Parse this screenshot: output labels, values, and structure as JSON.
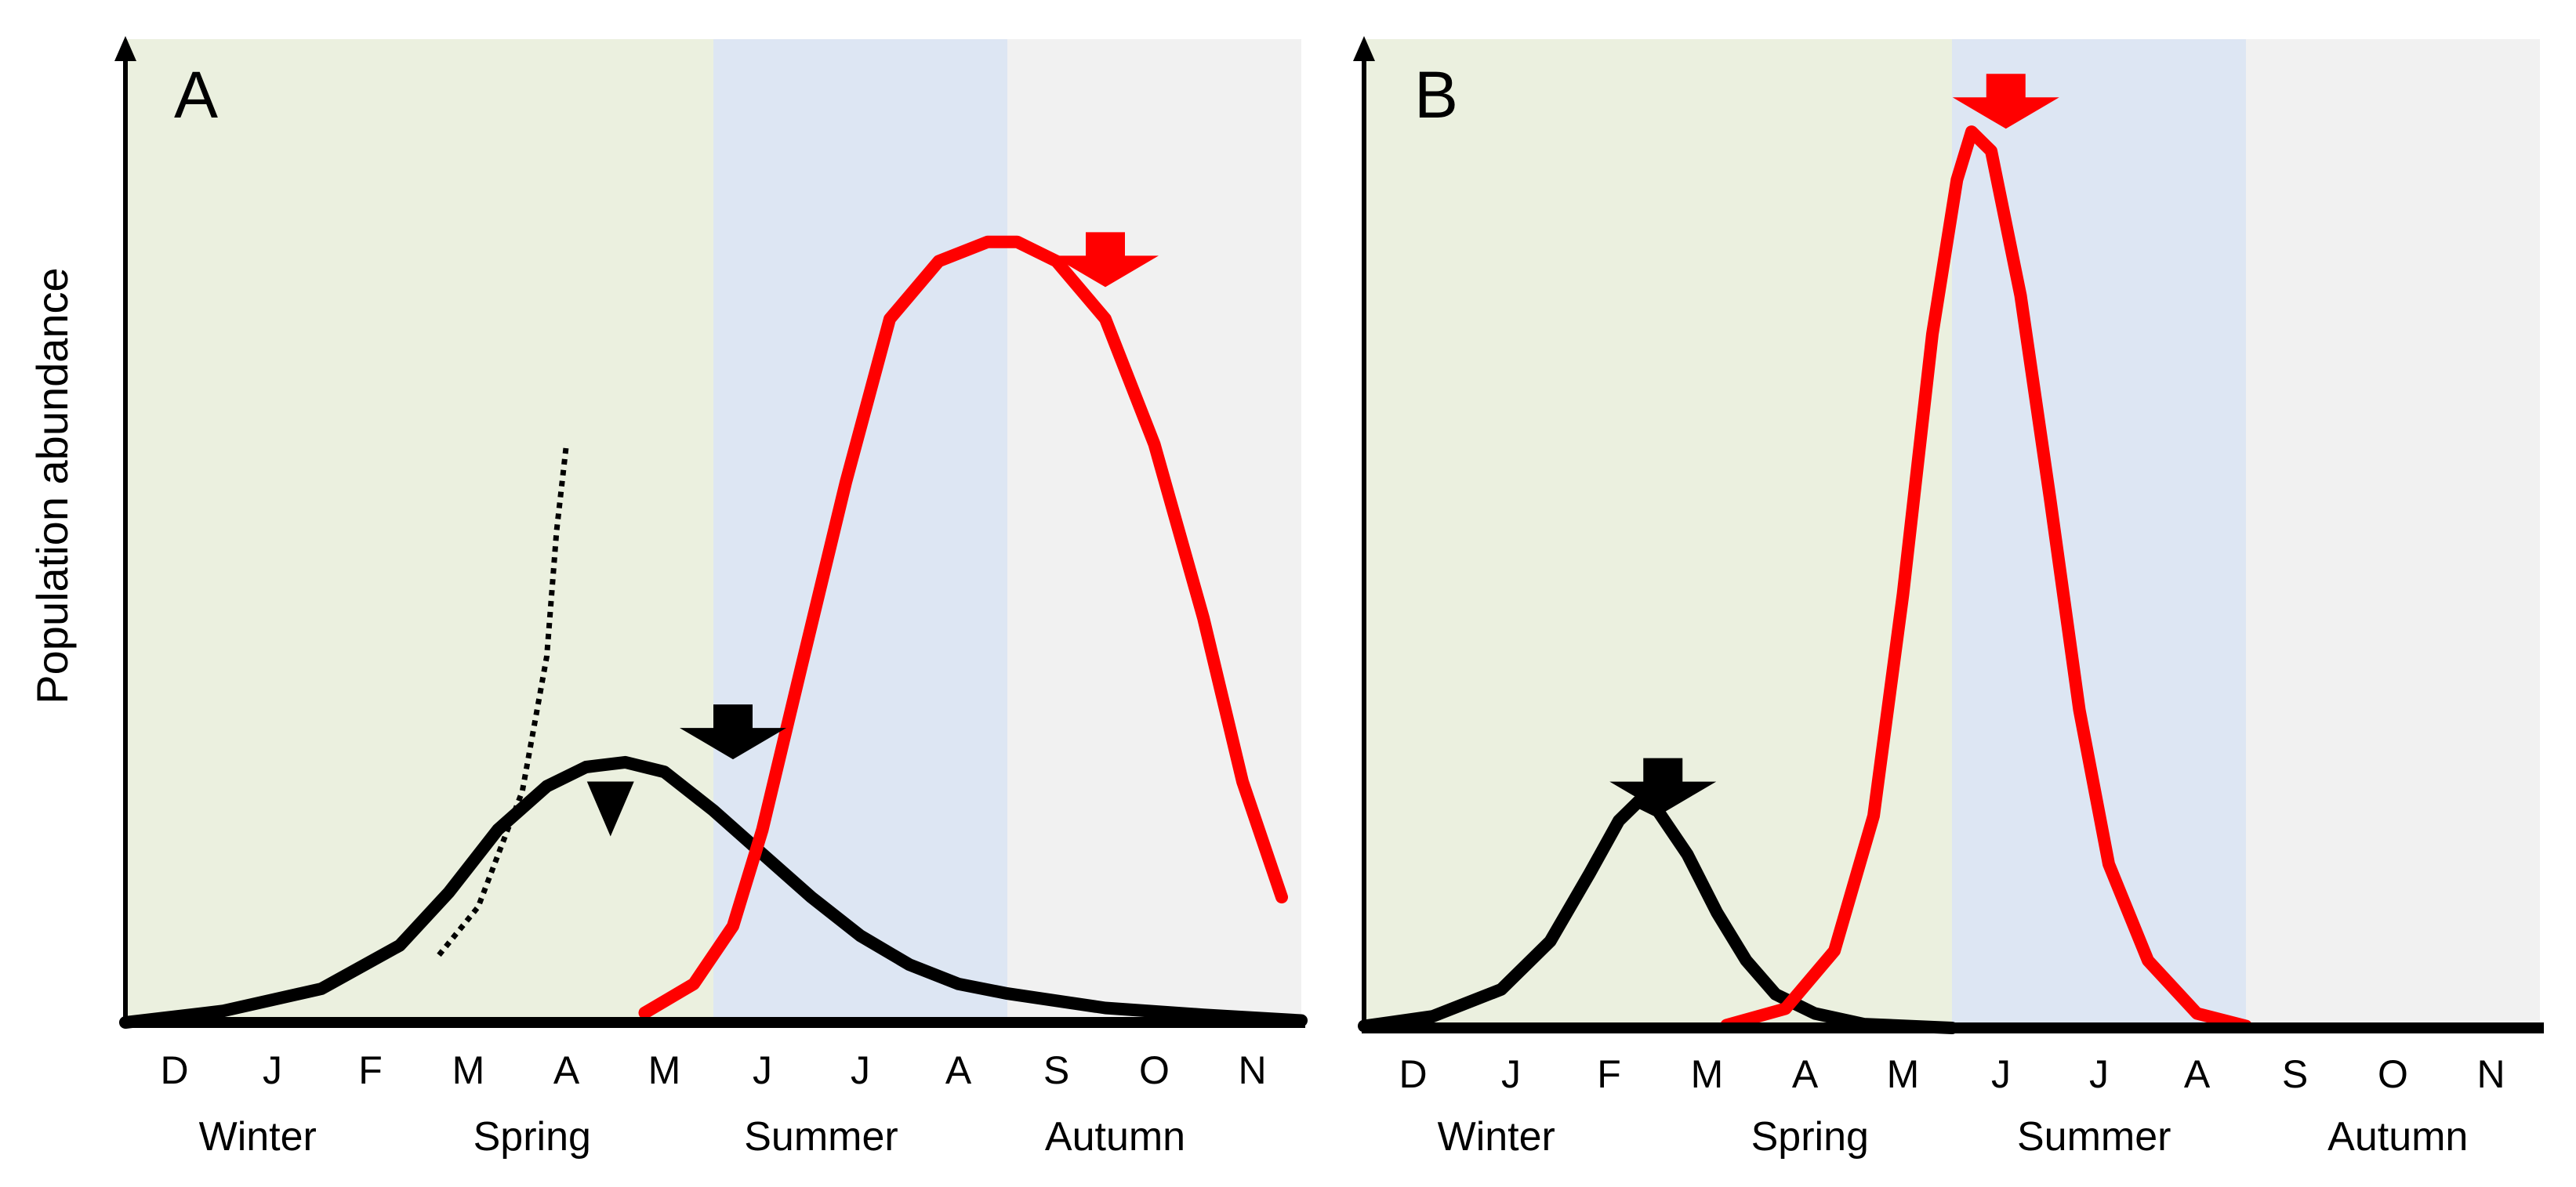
{
  "chart_data": [
    {
      "type": "line",
      "panel_label": "A",
      "ylabel": "Population abundance",
      "x_ticks": [
        "D",
        "J",
        "F",
        "M",
        "A",
        "M",
        "J",
        "J",
        "A",
        "S",
        "O",
        "N"
      ],
      "seasons": [
        {
          "name": "Winter",
          "start_month": 0,
          "end_month": 6,
          "label_month": 1.35,
          "color": "#ebf0df"
        },
        {
          "name": "Spring",
          "start_month": 0,
          "end_month": 6,
          "label_month": 4.15,
          "color": "#ebf0df"
        },
        {
          "name": "Summer",
          "start_month": 6,
          "end_month": 9,
          "label_month": 7.1,
          "color": "#dde6f3"
        },
        {
          "name": "Autumn",
          "start_month": 9,
          "end_month": 12,
          "label_month": 10.1,
          "color": "#f1f1f1"
        }
      ],
      "ylim": [
        0,
        1
      ],
      "series": [
        {
          "color": "#000000",
          "style": "solid",
          "points": [
            [
              0,
              0
            ],
            [
              1,
              0.012
            ],
            [
              2,
              0.035
            ],
            [
              2.8,
              0.08
            ],
            [
              3.3,
              0.135
            ],
            [
              3.8,
              0.2
            ],
            [
              4.3,
              0.245
            ],
            [
              4.7,
              0.265
            ],
            [
              5.1,
              0.27
            ],
            [
              5.5,
              0.26
            ],
            [
              6,
              0.22
            ],
            [
              6.5,
              0.175
            ],
            [
              7,
              0.13
            ],
            [
              7.5,
              0.09
            ],
            [
              8,
              0.06
            ],
            [
              8.5,
              0.04
            ],
            [
              9,
              0.03
            ],
            [
              10,
              0.015
            ],
            [
              11,
              0.008
            ],
            [
              12,
              0.002
            ]
          ]
        },
        {
          "color": "#000000",
          "style": "dotted",
          "points": [
            [
              3.2,
              0.07
            ],
            [
              3.6,
              0.12
            ],
            [
              4.05,
              0.24
            ],
            [
              4.3,
              0.38
            ],
            [
              4.4,
              0.51
            ],
            [
              4.5,
              0.6
            ]
          ]
        },
        {
          "color": "#ff0000",
          "style": "solid",
          "points": [
            [
              5.3,
              0.01
            ],
            [
              5.8,
              0.04
            ],
            [
              6.2,
              0.1
            ],
            [
              6.5,
              0.2
            ],
            [
              6.9,
              0.37
            ],
            [
              7.35,
              0.56
            ],
            [
              7.8,
              0.73
            ],
            [
              8.3,
              0.79
            ],
            [
              8.8,
              0.81
            ],
            [
              9.1,
              0.81
            ],
            [
              9.5,
              0.79
            ],
            [
              10,
              0.73
            ],
            [
              10.5,
              0.6
            ],
            [
              11,
              0.42
            ],
            [
              11.4,
              0.25
            ],
            [
              11.8,
              0.13
            ]
          ]
        }
      ],
      "markers": [
        {
          "type": "block-arrow",
          "color": "#000000",
          "x_month": 6.2,
          "y": 0.33
        },
        {
          "type": "block-arrow",
          "color": "#ff0000",
          "x_month": 10.0,
          "y": 0.82
        },
        {
          "type": "triangle",
          "color": "#000000",
          "x_month": 4.95,
          "y": 0.25
        }
      ]
    },
    {
      "type": "line",
      "panel_label": "B",
      "x_ticks": [
        "D",
        "J",
        "F",
        "M",
        "A",
        "M",
        "J",
        "J",
        "A",
        "S",
        "O",
        "N"
      ],
      "seasons": [
        {
          "name": "Winter",
          "start_month": 0,
          "end_month": 6,
          "label_month": 1.35,
          "color": "#ebf0df"
        },
        {
          "name": "Spring",
          "start_month": 0,
          "end_month": 6,
          "label_month": 4.55,
          "color": "#ebf0df"
        },
        {
          "name": "Summer",
          "start_month": 6,
          "end_month": 9,
          "label_month": 7.45,
          "color": "#dde6f3"
        },
        {
          "name": "Autumn",
          "start_month": 9,
          "end_month": 12,
          "label_month": 10.55,
          "color": "#f1f1f1"
        }
      ],
      "ylim": [
        0,
        1
      ],
      "series": [
        {
          "color": "#000000",
          "style": "solid",
          "points": [
            [
              0,
              0.002
            ],
            [
              0.7,
              0.012
            ],
            [
              1.4,
              0.04
            ],
            [
              1.9,
              0.09
            ],
            [
              2.3,
              0.16
            ],
            [
              2.6,
              0.215
            ],
            [
              2.8,
              0.235
            ],
            [
              3.0,
              0.225
            ],
            [
              3.3,
              0.18
            ],
            [
              3.6,
              0.12
            ],
            [
              3.9,
              0.07
            ],
            [
              4.2,
              0.035
            ],
            [
              4.6,
              0.015
            ],
            [
              5.1,
              0.004
            ],
            [
              6,
              0
            ]
          ]
        },
        {
          "color": "#ff0000",
          "style": "solid",
          "points": [
            [
              3.7,
              0.003
            ],
            [
              4.3,
              0.02
            ],
            [
              4.8,
              0.08
            ],
            [
              5.2,
              0.22
            ],
            [
              5.5,
              0.45
            ],
            [
              5.8,
              0.72
            ],
            [
              6.05,
              0.88
            ],
            [
              6.2,
              0.93
            ],
            [
              6.4,
              0.91
            ],
            [
              6.7,
              0.76
            ],
            [
              7,
              0.55
            ],
            [
              7.3,
              0.33
            ],
            [
              7.6,
              0.17
            ],
            [
              8,
              0.07
            ],
            [
              8.5,
              0.015
            ],
            [
              9,
              0.002
            ]
          ]
        }
      ],
      "markers": [
        {
          "type": "block-arrow",
          "color": "#000000",
          "x_month": 3.05,
          "y": 0.28
        },
        {
          "type": "block-arrow",
          "color": "#ff0000",
          "x_month": 6.55,
          "y": 0.99
        }
      ]
    }
  ]
}
